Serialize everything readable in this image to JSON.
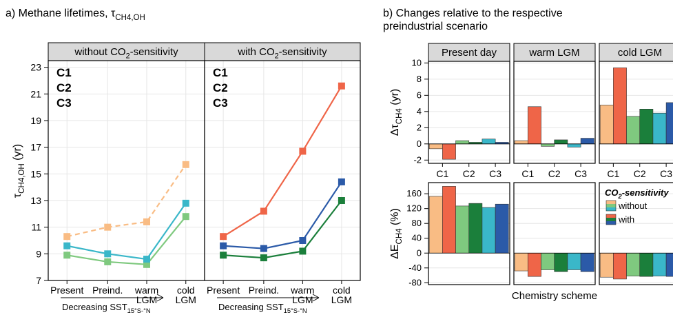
{
  "colors": {
    "C1_without": "#f9bc84",
    "C2_without": "#7fc97f",
    "C3_without": "#3ab7c9",
    "C1_with": "#ef6548",
    "C2_with": "#1b7f3b",
    "C3_with": "#2b5aa8",
    "strip_bg": "#d9d9d9",
    "grid": "#e6e6e6"
  },
  "chart_data": [
    {
      "id": "a",
      "type": "line",
      "title": "a) Methane lifetimes, τ",
      "title_sub": "CH4,OH",
      "ylabel": "τ",
      "ylabel_sub": "CH4,OH",
      "ylabel_unit": " (yr)",
      "ylim": [
        7,
        23.5
      ],
      "yticks": [
        7,
        9,
        11,
        13,
        15,
        17,
        19,
        21,
        23
      ],
      "categories": [
        [
          "Present"
        ],
        [
          "Preind."
        ],
        [
          "warm",
          "LGM"
        ],
        [
          "cold",
          "LGM"
        ]
      ],
      "arrow_label": "Decreasing SST",
      "arrow_label_sub": "15°S-°N",
      "facets": [
        {
          "strip": "without CO",
          "strip_sub": "2",
          "strip_tail": "-sensitivity",
          "legend": [
            "C1",
            "C2",
            "C3"
          ],
          "series": [
            {
              "name": "C1",
              "color_key": "C1_without",
              "dashed": true,
              "values": [
                10.3,
                11.0,
                11.4,
                15.7
              ]
            },
            {
              "name": "C2",
              "color_key": "C2_without",
              "dashed": false,
              "values": [
                8.9,
                8.4,
                8.2,
                11.8
              ]
            },
            {
              "name": "C3",
              "color_key": "C3_without",
              "dashed": false,
              "values": [
                9.6,
                9.0,
                8.6,
                12.8
              ]
            }
          ]
        },
        {
          "strip": "with CO",
          "strip_sub": "2",
          "strip_tail": "-sensitivity",
          "legend": [
            "C1",
            "C2",
            "C3"
          ],
          "series": [
            {
              "name": "C1",
              "color_key": "C1_with",
              "dashed": false,
              "values": [
                10.3,
                12.2,
                16.7,
                21.6
              ]
            },
            {
              "name": "C2",
              "color_key": "C2_with",
              "dashed": false,
              "values": [
                8.9,
                8.7,
                9.2,
                13.0
              ]
            },
            {
              "name": "C3",
              "color_key": "C3_with",
              "dashed": false,
              "values": [
                9.6,
                9.4,
                10.0,
                14.4
              ]
            }
          ]
        }
      ]
    },
    {
      "id": "b",
      "type": "bar",
      "title_line1": "b) Changes relative to the respective",
      "title_line2": "preindustrial scenario",
      "xlabel": "Chemistry scheme",
      "categories": [
        "C1",
        "C2",
        "C3"
      ],
      "bar_order": [
        "C1_without",
        "C1_with",
        "C2_without",
        "C2_with",
        "C3_without",
        "C3_with"
      ],
      "strips": [
        "Present day",
        "warm LGM",
        "cold LGM"
      ],
      "rows": [
        {
          "ylabel": "Δτ",
          "ylabel_sub": "CH4",
          "ylabel_unit": " (yr)",
          "ylim": [
            -2.4,
            10.2
          ],
          "yticks": [
            -2,
            0,
            2,
            4,
            6,
            8,
            10
          ],
          "facets": [
            {
              "values": [
                -0.6,
                -1.9,
                0.4,
                0.2,
                0.6,
                0.2
              ]
            },
            {
              "values": [
                0.4,
                4.6,
                -0.3,
                0.5,
                -0.4,
                0.7
              ]
            },
            {
              "values": [
                4.8,
                9.4,
                3.4,
                4.3,
                3.8,
                5.1
              ]
            }
          ]
        },
        {
          "ylabel": "ΔE",
          "ylabel_sub": "CH4",
          "ylabel_unit": " (%)",
          "ylim": [
            -85,
            190
          ],
          "yticks": [
            -80,
            -40,
            0,
            40,
            80,
            120,
            160
          ],
          "facets": [
            {
              "values": [
                153,
                180,
                127,
                134,
                123,
                132
              ]
            },
            {
              "values": [
                -48,
                -63,
                -45,
                -50,
                -45,
                -50
              ]
            },
            {
              "values": [
                -65,
                -70,
                -62,
                -63,
                -62,
                -63
              ]
            }
          ]
        }
      ],
      "legend": {
        "title": "CO",
        "title_sub": "2",
        "title_tail": "-sensitivity",
        "items": [
          "without",
          "with"
        ]
      }
    }
  ]
}
